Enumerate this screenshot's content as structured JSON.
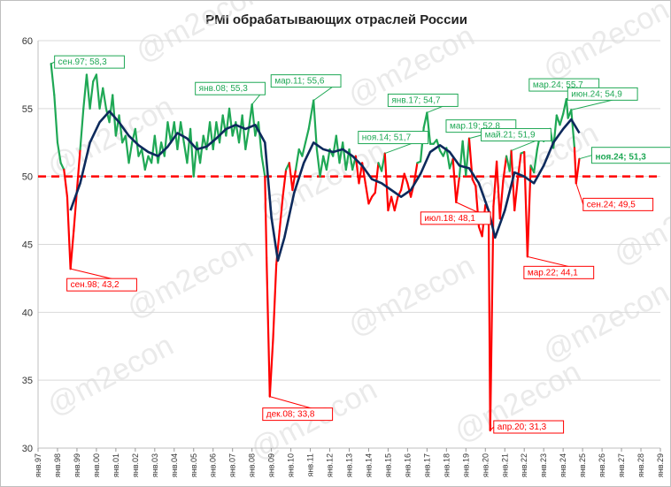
{
  "chart_data": {
    "type": "line",
    "title": "PMI обрабатывающих отраслей России",
    "ylim": [
      30,
      60
    ],
    "yticks": [
      30,
      35,
      40,
      45,
      50,
      55,
      60
    ],
    "threshold": 50,
    "x_range": [
      "1997-01",
      "2029-01"
    ],
    "x_tick_labels": [
      "янв.97",
      "янв.98",
      "янв.99",
      "янв.00",
      "янв.01",
      "янв.02",
      "янв.03",
      "янв.04",
      "янв.05",
      "янв.06",
      "янв.07",
      "янв.08",
      "янв.09",
      "янв.10",
      "янв.11",
      "янв.12",
      "янв.13",
      "янв.14",
      "янв.15",
      "янв.16",
      "янв.17",
      "янв.18",
      "янв.19",
      "янв.20",
      "янв.21",
      "янв.22",
      "янв.23",
      "янв.24",
      "янв.25",
      "янв.26",
      "янв.27",
      "янв.28",
      "янв.29"
    ],
    "grid": true,
    "colors": {
      "above": "#1fa855",
      "below": "#ff0000",
      "trend": "#0d2a5c",
      "threshold": "#ff0000",
      "grid": "#d9d9d9"
    },
    "watermark": "@m2econ",
    "series": [
      {
        "points": [
          [
            "1997-09",
            58.3
          ],
          [
            "1997-11",
            56.0
          ],
          [
            "1998-01",
            52.5
          ],
          [
            "1998-03",
            51.0
          ],
          [
            "1998-05",
            50.5
          ],
          [
            "1998-07",
            48.5
          ],
          [
            "1998-09",
            43.2
          ],
          [
            "1998-11",
            46.0
          ],
          [
            "1999-01",
            49.0
          ],
          [
            "1999-03",
            52.0
          ],
          [
            "1999-05",
            55.0
          ],
          [
            "1999-07",
            57.5
          ],
          [
            "1999-09",
            55.0
          ],
          [
            "1999-11",
            57.0
          ],
          [
            "2000-01",
            57.5
          ],
          [
            "2000-03",
            55.0
          ],
          [
            "2000-05",
            56.5
          ],
          [
            "2000-07",
            55.0
          ],
          [
            "2000-09",
            54.0
          ],
          [
            "2000-11",
            56.0
          ],
          [
            "2001-01",
            53.0
          ],
          [
            "2001-03",
            54.5
          ],
          [
            "2001-05",
            52.5
          ],
          [
            "2001-07",
            53.0
          ],
          [
            "2001-09",
            51.0
          ],
          [
            "2001-11",
            52.5
          ],
          [
            "2002-01",
            53.5
          ],
          [
            "2002-03",
            51.5
          ],
          [
            "2002-05",
            52.0
          ],
          [
            "2002-07",
            50.5
          ],
          [
            "2002-09",
            51.5
          ],
          [
            "2002-11",
            51.0
          ],
          [
            "2003-01",
            53.0
          ],
          [
            "2003-03",
            51.0
          ],
          [
            "2003-05",
            52.5
          ],
          [
            "2003-07",
            51.5
          ],
          [
            "2003-09",
            54.0
          ],
          [
            "2003-11",
            52.5
          ],
          [
            "2004-01",
            54.0
          ],
          [
            "2004-03",
            52.0
          ],
          [
            "2004-05",
            54.0
          ],
          [
            "2004-07",
            52.5
          ],
          [
            "2004-09",
            51.0
          ],
          [
            "2004-11",
            53.5
          ],
          [
            "2005-01",
            50.0
          ],
          [
            "2005-03",
            52.5
          ],
          [
            "2005-05",
            51.0
          ],
          [
            "2005-07",
            53.0
          ],
          [
            "2005-09",
            52.0
          ],
          [
            "2005-11",
            54.0
          ],
          [
            "2006-01",
            52.0
          ],
          [
            "2006-03",
            54.0
          ],
          [
            "2006-05",
            52.5
          ],
          [
            "2006-07",
            54.5
          ],
          [
            "2006-09",
            53.0
          ],
          [
            "2006-11",
            55.0
          ],
          [
            "2007-01",
            53.0
          ],
          [
            "2007-03",
            54.0
          ],
          [
            "2007-05",
            52.5
          ],
          [
            "2007-07",
            54.5
          ],
          [
            "2007-09",
            52.0
          ],
          [
            "2007-11",
            53.5
          ],
          [
            "2008-01",
            55.3
          ],
          [
            "2008-03",
            53.0
          ],
          [
            "2008-05",
            54.0
          ],
          [
            "2008-07",
            51.5
          ],
          [
            "2008-09",
            50.0
          ],
          [
            "2008-10",
            44.0
          ],
          [
            "2008-12",
            33.8
          ],
          [
            "2009-02",
            38.0
          ],
          [
            "2009-04",
            43.5
          ],
          [
            "2009-06",
            46.0
          ],
          [
            "2009-08",
            48.5
          ],
          [
            "2009-10",
            50.5
          ],
          [
            "2009-12",
            51.0
          ],
          [
            "2010-02",
            49.0
          ],
          [
            "2010-04",
            50.5
          ],
          [
            "2010-06",
            52.0
          ],
          [
            "2010-08",
            51.5
          ],
          [
            "2010-10",
            52.5
          ],
          [
            "2010-12",
            53.5
          ],
          [
            "2011-03",
            55.6
          ],
          [
            "2011-05",
            52.0
          ],
          [
            "2011-07",
            50.0
          ],
          [
            "2011-09",
            51.5
          ],
          [
            "2011-11",
            50.5
          ],
          [
            "2012-01",
            52.0
          ],
          [
            "2012-03",
            51.5
          ],
          [
            "2012-05",
            53.0
          ],
          [
            "2012-07",
            51.0
          ],
          [
            "2012-09",
            52.5
          ],
          [
            "2012-11",
            50.5
          ],
          [
            "2013-01",
            52.0
          ],
          [
            "2013-03",
            50.5
          ],
          [
            "2013-05",
            51.5
          ],
          [
            "2013-07",
            49.5
          ],
          [
            "2013-09",
            51.0
          ],
          [
            "2013-11",
            49.5
          ],
          [
            "2014-01",
            48.0
          ],
          [
            "2014-03",
            48.5
          ],
          [
            "2014-05",
            48.8
          ],
          [
            "2014-07",
            51.0
          ],
          [
            "2014-09",
            50.4
          ],
          [
            "2014-11",
            51.7
          ],
          [
            "2015-01",
            47.5
          ],
          [
            "2015-03",
            48.5
          ],
          [
            "2015-05",
            47.5
          ],
          [
            "2015-07",
            48.5
          ],
          [
            "2015-09",
            49.0
          ],
          [
            "2015-11",
            50.2
          ],
          [
            "2016-01",
            49.5
          ],
          [
            "2016-03",
            48.5
          ],
          [
            "2016-05",
            49.5
          ],
          [
            "2016-07",
            51.0
          ],
          [
            "2016-09",
            51.1
          ],
          [
            "2016-11",
            53.6
          ],
          [
            "2017-01",
            54.7
          ],
          [
            "2017-03",
            52.4
          ],
          [
            "2017-05",
            52.4
          ],
          [
            "2017-07",
            52.7
          ],
          [
            "2017-09",
            51.9
          ],
          [
            "2017-11",
            51.5
          ],
          [
            "2018-01",
            52.1
          ],
          [
            "2018-03",
            50.6
          ],
          [
            "2018-05",
            51.3
          ],
          [
            "2018-07",
            48.1
          ],
          [
            "2018-09",
            50.0
          ],
          [
            "2018-11",
            52.6
          ],
          [
            "2019-01",
            50.1
          ],
          [
            "2019-03",
            52.8
          ],
          [
            "2019-05",
            49.8
          ],
          [
            "2019-07",
            49.3
          ],
          [
            "2019-09",
            46.3
          ],
          [
            "2019-11",
            45.6
          ],
          [
            "2020-01",
            47.9
          ],
          [
            "2020-03",
            47.5
          ],
          [
            "2020-04",
            31.3
          ],
          [
            "2020-06",
            47.8
          ],
          [
            "2020-08",
            51.1
          ],
          [
            "2020-10",
            46.9
          ],
          [
            "2020-12",
            49.7
          ],
          [
            "2021-02",
            51.5
          ],
          [
            "2021-04",
            50.4
          ],
          [
            "2021-05",
            51.9
          ],
          [
            "2021-07",
            47.5
          ],
          [
            "2021-09",
            49.8
          ],
          [
            "2021-11",
            51.7
          ],
          [
            "2022-01",
            51.8
          ],
          [
            "2022-03",
            44.1
          ],
          [
            "2022-05",
            50.8
          ],
          [
            "2022-07",
            50.3
          ],
          [
            "2022-09",
            52.0
          ],
          [
            "2022-11",
            53.2
          ],
          [
            "2023-01",
            52.6
          ],
          [
            "2023-03",
            53.2
          ],
          [
            "2023-05",
            53.5
          ],
          [
            "2023-07",
            52.1
          ],
          [
            "2023-09",
            54.5
          ],
          [
            "2023-11",
            53.8
          ],
          [
            "2024-01",
            54.6
          ],
          [
            "2024-03",
            55.7
          ],
          [
            "2024-04",
            54.3
          ],
          [
            "2024-06",
            54.9
          ],
          [
            "2024-08",
            52.1
          ],
          [
            "2024-09",
            49.5
          ],
          [
            "2024-11",
            51.3
          ]
        ]
      },
      {
        "points": [
          [
            "1998-09",
            47.5
          ],
          [
            "1999-03",
            49.5
          ],
          [
            "1999-09",
            52.5
          ],
          [
            "2000-03",
            54.0
          ],
          [
            "2000-09",
            54.8
          ],
          [
            "2001-03",
            54.0
          ],
          [
            "2001-09",
            53.0
          ],
          [
            "2002-03",
            52.3
          ],
          [
            "2002-09",
            51.8
          ],
          [
            "2003-03",
            51.5
          ],
          [
            "2003-09",
            52.2
          ],
          [
            "2004-03",
            53.2
          ],
          [
            "2004-09",
            52.8
          ],
          [
            "2005-03",
            52.0
          ],
          [
            "2005-09",
            52.2
          ],
          [
            "2006-03",
            52.8
          ],
          [
            "2006-09",
            53.5
          ],
          [
            "2007-03",
            53.8
          ],
          [
            "2007-09",
            53.5
          ],
          [
            "2008-03",
            53.8
          ],
          [
            "2008-09",
            52.5
          ],
          [
            "2009-01",
            47.0
          ],
          [
            "2009-05",
            43.8
          ],
          [
            "2009-09",
            45.5
          ],
          [
            "2010-03",
            48.8
          ],
          [
            "2010-09",
            51.0
          ],
          [
            "2011-03",
            52.5
          ],
          [
            "2011-09",
            52.0
          ],
          [
            "2012-03",
            51.8
          ],
          [
            "2012-09",
            52.0
          ],
          [
            "2013-03",
            51.5
          ],
          [
            "2013-09",
            50.8
          ],
          [
            "2014-03",
            49.8
          ],
          [
            "2014-09",
            49.5
          ],
          [
            "2015-03",
            49.0
          ],
          [
            "2015-09",
            48.5
          ],
          [
            "2016-03",
            49.0
          ],
          [
            "2016-09",
            50.2
          ],
          [
            "2017-03",
            51.8
          ],
          [
            "2017-09",
            52.3
          ],
          [
            "2018-03",
            51.8
          ],
          [
            "2018-09",
            50.8
          ],
          [
            "2019-03",
            50.6
          ],
          [
            "2019-09",
            49.5
          ],
          [
            "2020-03",
            47.5
          ],
          [
            "2020-07",
            45.5
          ],
          [
            "2021-01",
            47.5
          ],
          [
            "2021-07",
            50.3
          ],
          [
            "2022-01",
            50.0
          ],
          [
            "2022-07",
            49.5
          ],
          [
            "2023-01",
            50.8
          ],
          [
            "2023-07",
            52.5
          ],
          [
            "2024-01",
            53.5
          ],
          [
            "2024-06",
            54.2
          ],
          [
            "2024-11",
            53.2
          ]
        ]
      }
    ],
    "annotations": [
      {
        "text": "сен.97; 58,3",
        "date": "1997-09",
        "value": 58.3,
        "color": "#1fa855"
      },
      {
        "text": "сен.98; 43,2",
        "date": "1998-09",
        "value": 43.2,
        "color": "#ff0000"
      },
      {
        "text": "янв.08; 55,3",
        "date": "2008-01",
        "value": 55.3,
        "color": "#1fa855"
      },
      {
        "text": "дек.08; 33,8",
        "date": "2008-12",
        "value": 33.8,
        "color": "#ff0000"
      },
      {
        "text": "мар.11; 55,6",
        "date": "2011-03",
        "value": 55.6,
        "color": "#1fa855"
      },
      {
        "text": "ноя.14; 51,7",
        "date": "2014-11",
        "value": 51.7,
        "color": "#1fa855"
      },
      {
        "text": "янв.17; 54,7",
        "date": "2017-01",
        "value": 54.7,
        "color": "#1fa855"
      },
      {
        "text": "мар.19; 52,8",
        "date": "2019-03",
        "value": 52.8,
        "color": "#1fa855"
      },
      {
        "text": "июл.18; 48,1",
        "date": "2018-07",
        "value": 48.1,
        "color": "#ff0000"
      },
      {
        "text": "май.21; 51,9",
        "date": "2021-05",
        "value": 51.9,
        "color": "#1fa855"
      },
      {
        "text": "апр.20; 31,3",
        "date": "2020-04",
        "value": 31.3,
        "color": "#ff0000"
      },
      {
        "text": "мар.22; 44,1",
        "date": "2022-03",
        "value": 44.1,
        "color": "#ff0000"
      },
      {
        "text": "мар.24; 55,7",
        "date": "2024-03",
        "value": 55.7,
        "color": "#1fa855"
      },
      {
        "text": "июн.24; 54,9",
        "date": "2024-06",
        "value": 54.9,
        "color": "#1fa855"
      },
      {
        "text": "ноя.24; 51,3",
        "date": "2024-11",
        "value": 51.3,
        "color": "#1fa855"
      },
      {
        "text": "сен.24; 49,5",
        "date": "2024-09",
        "value": 49.5,
        "color": "#ff0000"
      }
    ]
  }
}
